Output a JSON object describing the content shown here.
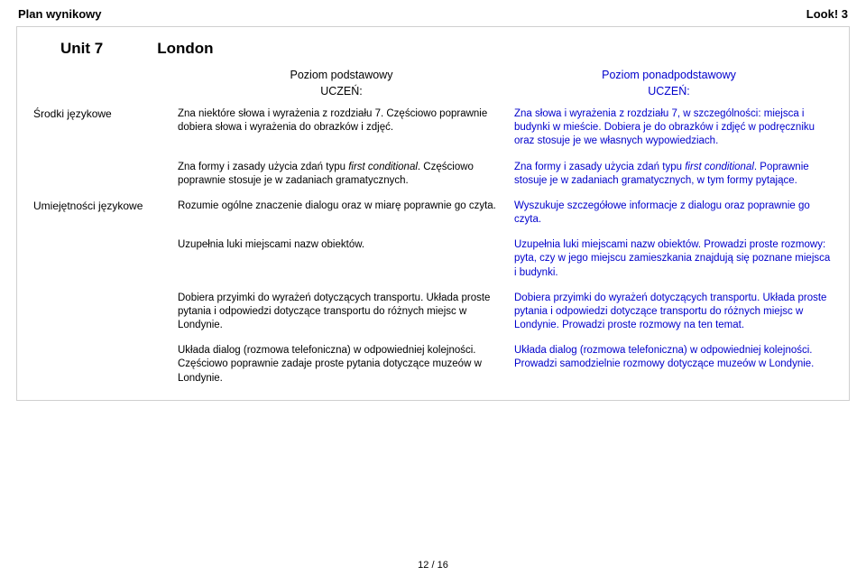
{
  "header": {
    "left": "Plan wynikowy",
    "right": "Look! 3"
  },
  "unit": {
    "label": "Unit 7",
    "title": "London"
  },
  "levels": {
    "basic": "Poziom podstawowy",
    "ext": "Poziom ponadpodstawowy",
    "uczen": "UCZEŃ:"
  },
  "sections": [
    {
      "label": "Środki językowe",
      "rows": [
        {
          "left": "Zna niektóre słowa i wyrażenia z rozdziału 7. Częściowo poprawnie dobiera słowa i wyrażenia do obrazków i zdjęć.",
          "right": "Zna słowa i wyrażenia z rozdziału 7, w szczególności: miejsca i budynki w mieście. Dobiera je do obrazków i zdjęć w podręczniku oraz stosuje je we własnych wypowiedziach."
        },
        {
          "leftParts": [
            "Zna formy i zasady użycia zdań typu ",
            "first conditional",
            ". Częściowo poprawnie stosuje je w zadaniach gramatycznych."
          ],
          "rightParts": [
            "Zna formy i zasady użycia zdań typu ",
            "first conditional",
            ". Poprawnie stosuje je w zadaniach gramatycznych, w tym formy pytające."
          ]
        }
      ]
    },
    {
      "label": "Umiejętności językowe",
      "rows": [
        {
          "left": "Rozumie ogólne znaczenie dialogu oraz w miarę poprawnie go czyta.",
          "right": "Wyszukuje szczegółowe informacje z dialogu oraz poprawnie go czyta."
        },
        {
          "left": "Uzupełnia luki miejscami nazw obiektów.",
          "right": "Uzupełnia luki miejscami nazw obiektów. Prowadzi proste rozmowy: pyta, czy w jego miejscu zamieszkania znajdują się poznane miejsca i budynki."
        },
        {
          "left": "Dobiera przyimki do wyrażeń dotyczących transportu. Układa proste pytania i odpowiedzi dotyczące transportu do różnych miejsc w Londynie.",
          "right": "Dobiera przyimki do wyrażeń dotyczących transportu. Układa proste pytania i odpowiedzi dotyczące transportu do różnych miejsc w Londynie. Prowadzi proste rozmowy na ten temat."
        },
        {
          "left": "Układa dialog (rozmowa telefoniczna) w odpowiedniej kolejności. Częściowo poprawnie zadaje proste pytania dotyczące muzeów w Londynie.",
          "right": "Układa dialog (rozmowa telefoniczna) w odpowiedniej kolejności. Prowadzi samodzielnie rozmowy dotyczące muzeów w Londynie."
        }
      ]
    }
  ],
  "footer": "12 / 16",
  "colors": {
    "link": "#0000cc",
    "border": "#d0d0d0",
    "text": "#000000",
    "background": "#ffffff"
  }
}
